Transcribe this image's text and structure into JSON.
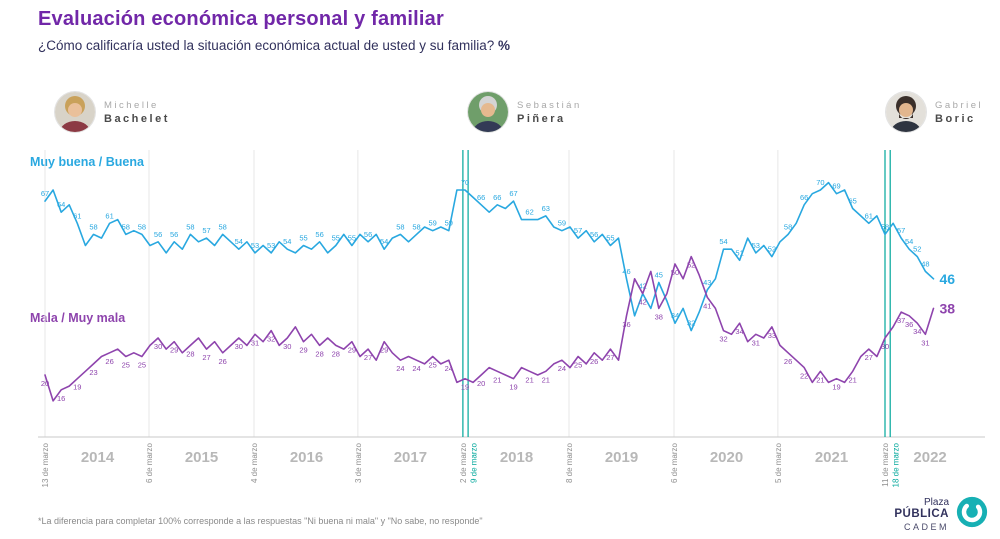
{
  "header": {
    "title": "Evaluación económica personal y familiar",
    "question": "¿Cómo calificaría usted la situación económica actual de usted y su familia? ",
    "percent": "%"
  },
  "presidents": [
    {
      "first": "Michelle",
      "last": "Bachelet"
    },
    {
      "first": "Sebastián",
      "last": "Piñera"
    },
    {
      "first": "Gabriel",
      "last": "Boric"
    }
  ],
  "footnote": "*La diferencia para completar 100% corresponde a las respuestas \"Ni buena ni mala\" y \"No sabe, no responde\"",
  "logo": {
    "line1": "Plaza",
    "line2": "PÚBLICA",
    "line3": "CADEM"
  },
  "chart_data": {
    "type": "line",
    "title": "Evaluación económica personal y familiar",
    "subtitle": "¿Cómo calificaría usted la situación económica actual de usted y su familia? %",
    "xlabel": "",
    "ylabel": "%",
    "ylim": [
      0,
      80
    ],
    "grid": true,
    "legend_position": "inline-left",
    "start_year": 2014.19,
    "points_per_year": 13,
    "accent_teal": "#00a79b",
    "grid_years": [
      2014.19,
      2015.18,
      2016.18,
      2017.17,
      2018.17,
      2019.18,
      2020.18,
      2021.17,
      2022.19
    ],
    "year_labels": [
      {
        "label": "2014",
        "year": 2014.69
      },
      {
        "label": "2015",
        "year": 2015.68
      },
      {
        "label": "2016",
        "year": 2016.68
      },
      {
        "label": "2017",
        "year": 2017.67
      },
      {
        "label": "2018",
        "year": 2018.68
      },
      {
        "label": "2019",
        "year": 2019.68
      },
      {
        "label": "2020",
        "year": 2020.68
      },
      {
        "label": "2021",
        "year": 2021.68
      },
      {
        "label": "2022",
        "year": 2022.62
      }
    ],
    "ticks": [
      {
        "label": "13 de marzo",
        "year": 2014.19,
        "highlight": false
      },
      {
        "label": "6 de marzo",
        "year": 2015.18,
        "highlight": false
      },
      {
        "label": "4 de marzo",
        "year": 2016.18,
        "highlight": false
      },
      {
        "label": "3 de marzo",
        "year": 2017.17,
        "highlight": false
      },
      {
        "label": "2 de marzo",
        "year": 2018.17,
        "highlight": false
      },
      {
        "label": "9 de marzo",
        "year": 2018.27,
        "highlight": true
      },
      {
        "label": "8 de marzo",
        "year": 2019.18,
        "highlight": false
      },
      {
        "label": "6 de marzo",
        "year": 2020.18,
        "highlight": false
      },
      {
        "label": "5 de marzo",
        "year": 2021.17,
        "highlight": false
      },
      {
        "label": "11 de marzo",
        "year": 2022.19,
        "highlight": false
      },
      {
        "label": "18 de marzo",
        "year": 2022.29,
        "highlight": true
      }
    ],
    "transitions": [
      {
        "name": "cambio-de-mando-2018",
        "years": [
          2018.17,
          2018.22
        ]
      },
      {
        "name": "cambio-de-mando-2022",
        "years": [
          2022.19,
          2022.24
        ]
      }
    ],
    "series": [
      {
        "name": "Muy buena / Buena",
        "color": "#29a8e0",
        "values": [
          67,
          70,
          64,
          66,
          61,
          55,
          58,
          57,
          61,
          62,
          58,
          59,
          58,
          55,
          56,
          53,
          56,
          54,
          58,
          56,
          57,
          55,
          58,
          56,
          54,
          56,
          53,
          55,
          53,
          56,
          54,
          53,
          55,
          54,
          56,
          53,
          55,
          58,
          55,
          58,
          56,
          58,
          54,
          57,
          58,
          56,
          58,
          60,
          59,
          60,
          59,
          70,
          70,
          68,
          66,
          64,
          66,
          65,
          67,
          62,
          62,
          62,
          63,
          60,
          59,
          60,
          57,
          59,
          56,
          58,
          55,
          57,
          46,
          36,
          42,
          38,
          45,
          40,
          34,
          38,
          32,
          37,
          43,
          46,
          54,
          54,
          51,
          57,
          53,
          55,
          52,
          56,
          58,
          61,
          66,
          69,
          70,
          72,
          69,
          70,
          65,
          63,
          61,
          63,
          58,
          61,
          57,
          54,
          52,
          48,
          46
        ]
      },
      {
        "name": "Mala / Muy mala",
        "color": "#8e44ad",
        "values": [
          20,
          13,
          16,
          17,
          19,
          21,
          23,
          25,
          26,
          27,
          25,
          26,
          25,
          28,
          30,
          27,
          29,
          26,
          28,
          30,
          27,
          29,
          26,
          28,
          30,
          28,
          31,
          29,
          32,
          28,
          30,
          33,
          29,
          31,
          28,
          30,
          28,
          27,
          29,
          25,
          27,
          24,
          29,
          26,
          24,
          25,
          24,
          23,
          25,
          23,
          24,
          18,
          19,
          18,
          20,
          22,
          21,
          20,
          19,
          22,
          21,
          20,
          21,
          23,
          24,
          22,
          25,
          23,
          26,
          24,
          27,
          24,
          36,
          46,
          42,
          48,
          38,
          42,
          50,
          46,
          52,
          47,
          41,
          38,
          32,
          31,
          34,
          29,
          31,
          30,
          33,
          28,
          26,
          24,
          22,
          18,
          21,
          18,
          19,
          18,
          21,
          25,
          27,
          25,
          30,
          33,
          37,
          36,
          34,
          31,
          38
        ]
      }
    ],
    "end_values": {
      "positive": 46,
      "negative": 38
    }
  }
}
